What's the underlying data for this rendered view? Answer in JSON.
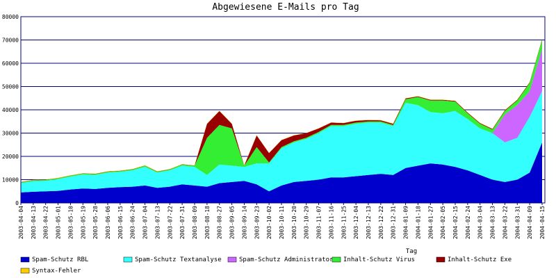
{
  "chart_data": {
    "type": "area",
    "title": "Abgewiesene E-Mails pro Tag",
    "xlabel": "Tag",
    "ylabel": "",
    "ylim": [
      0,
      80000
    ],
    "grid": true,
    "stacked": true,
    "legend_position": "bottom",
    "y_ticks": [
      0,
      10000,
      20000,
      30000,
      40000,
      50000,
      60000,
      70000,
      80000
    ],
    "x_tick_labels": [
      "2003-04-04",
      "2003-04-13",
      "2003-04-22",
      "2003-05-01",
      "2003-05-10",
      "2003-05-19",
      "2003-05-28",
      "2003-06-06",
      "2003-06-15",
      "2003-06-24",
      "2003-07-04",
      "2003-07-13",
      "2003-07-22",
      "2003-07-31",
      "2003-08-09",
      "2003-08-18",
      "2003-08-27",
      "2003-09-05",
      "2003-09-14",
      "2003-09-23",
      "2003-10-02",
      "2003-10-11",
      "2003-10-20",
      "2003-10-29",
      "2003-11-07",
      "2003-11-16",
      "2003-11-25",
      "2003-12-04",
      "2003-12-13",
      "2003-12-22",
      "2003-12-31",
      "2004-01-09",
      "2004-01-18",
      "2004-01-27",
      "2004-02-05",
      "2004-02-15",
      "2004-02-24",
      "2004-03-04",
      "2004-03-13",
      "2004-03-22",
      "2004-03-31",
      "2004-04-09",
      "2004-04-15"
    ],
    "x": [
      "2003-04-04",
      "2003-04-13",
      "2003-04-22",
      "2003-05-01",
      "2003-05-10",
      "2003-05-19",
      "2003-05-28",
      "2003-06-06",
      "2003-06-15",
      "2003-06-24",
      "2003-07-04",
      "2003-07-13",
      "2003-07-22",
      "2003-07-31",
      "2003-08-09",
      "2003-08-18",
      "2003-08-27",
      "2003-09-05",
      "2003-09-14",
      "2003-09-23",
      "2003-10-02",
      "2003-10-11",
      "2003-10-20",
      "2003-10-29",
      "2003-11-07",
      "2003-11-16",
      "2003-11-25",
      "2003-12-04",
      "2003-12-13",
      "2003-12-22",
      "2003-12-31",
      "2004-01-09",
      "2004-01-18",
      "2004-01-27",
      "2004-02-05",
      "2004-02-15",
      "2004-02-24",
      "2004-03-04",
      "2004-03-13",
      "2004-03-22",
      "2004-03-31",
      "2004-04-09",
      "2004-04-15"
    ],
    "series": [
      {
        "name": "Spam-Schutz RBL",
        "color": "#0000cc",
        "values": [
          4500,
          4800,
          5000,
          5200,
          5800,
          6200,
          6000,
          6500,
          6800,
          7000,
          7500,
          6500,
          7000,
          8000,
          7500,
          7000,
          8500,
          9000,
          9500,
          8000,
          5000,
          7500,
          9000,
          9500,
          10000,
          11000,
          11000,
          11500,
          12000,
          12500,
          12000,
          15000,
          16000,
          17000,
          16500,
          15500,
          14000,
          12000,
          10000,
          9000,
          10000,
          13000,
          26000
        ]
      },
      {
        "name": "Spam-Schutz Textanalyse",
        "color": "#33ffff",
        "values": [
          4000,
          4500,
          4500,
          5000,
          5500,
          6000,
          6000,
          6500,
          6500,
          7000,
          8000,
          6500,
          7000,
          8000,
          8000,
          5000,
          8000,
          7000,
          6000,
          9000,
          12000,
          16000,
          17000,
          18000,
          20000,
          22000,
          22000,
          22500,
          22500,
          22000,
          21000,
          28000,
          26000,
          22000,
          22000,
          24000,
          22000,
          20000,
          20000,
          17000,
          18000,
          24000,
          22000
        ]
      },
      {
        "name": "Spam-Schutz Administrator",
        "color": "#cc66ff",
        "values": [
          0,
          0,
          0,
          0,
          0,
          0,
          0,
          0,
          0,
          0,
          0,
          0,
          0,
          0,
          0,
          0,
          0,
          0,
          0,
          0,
          0,
          0,
          0,
          0,
          0,
          0,
          0,
          0,
          0,
          0,
          0,
          0,
          0,
          0,
          0,
          0,
          0,
          0,
          0,
          12000,
          14000,
          11000,
          18000
        ]
      },
      {
        "name": "Inhalt-Schutz Virus",
        "color": "#33ee33",
        "values": [
          400,
          400,
          400,
          400,
          400,
          400,
          400,
          400,
          400,
          400,
          500,
          400,
          400,
          500,
          500,
          16000,
          17000,
          16000,
          500,
          7000,
          400,
          500,
          500,
          500,
          500,
          500,
          500,
          500,
          500,
          500,
          500,
          1500,
          3500,
          5000,
          5500,
          4000,
          2500,
          2000,
          1500,
          1500,
          2000,
          3500,
          4000
        ]
      },
      {
        "name": "Inhalt-Schutz Exe",
        "color": "#990000",
        "values": [
          100,
          100,
          100,
          100,
          100,
          100,
          100,
          100,
          100,
          100,
          100,
          100,
          100,
          100,
          100,
          6000,
          6000,
          2000,
          100,
          5000,
          4000,
          3000,
          2500,
          2000,
          1500,
          1000,
          800,
          800,
          600,
          500,
          500,
          400,
          300,
          300,
          300,
          300,
          300,
          300,
          300,
          300,
          300,
          300,
          300
        ]
      },
      {
        "name": "Syntax-Fehler",
        "color": "#ffcc00",
        "values": [
          100,
          100,
          100,
          100,
          100,
          100,
          100,
          100,
          100,
          100,
          100,
          100,
          100,
          100,
          100,
          100,
          100,
          100,
          100,
          100,
          100,
          100,
          100,
          100,
          100,
          100,
          100,
          100,
          100,
          100,
          100,
          100,
          100,
          100,
          100,
          100,
          100,
          100,
          100,
          100,
          100,
          100,
          100
        ]
      }
    ]
  }
}
